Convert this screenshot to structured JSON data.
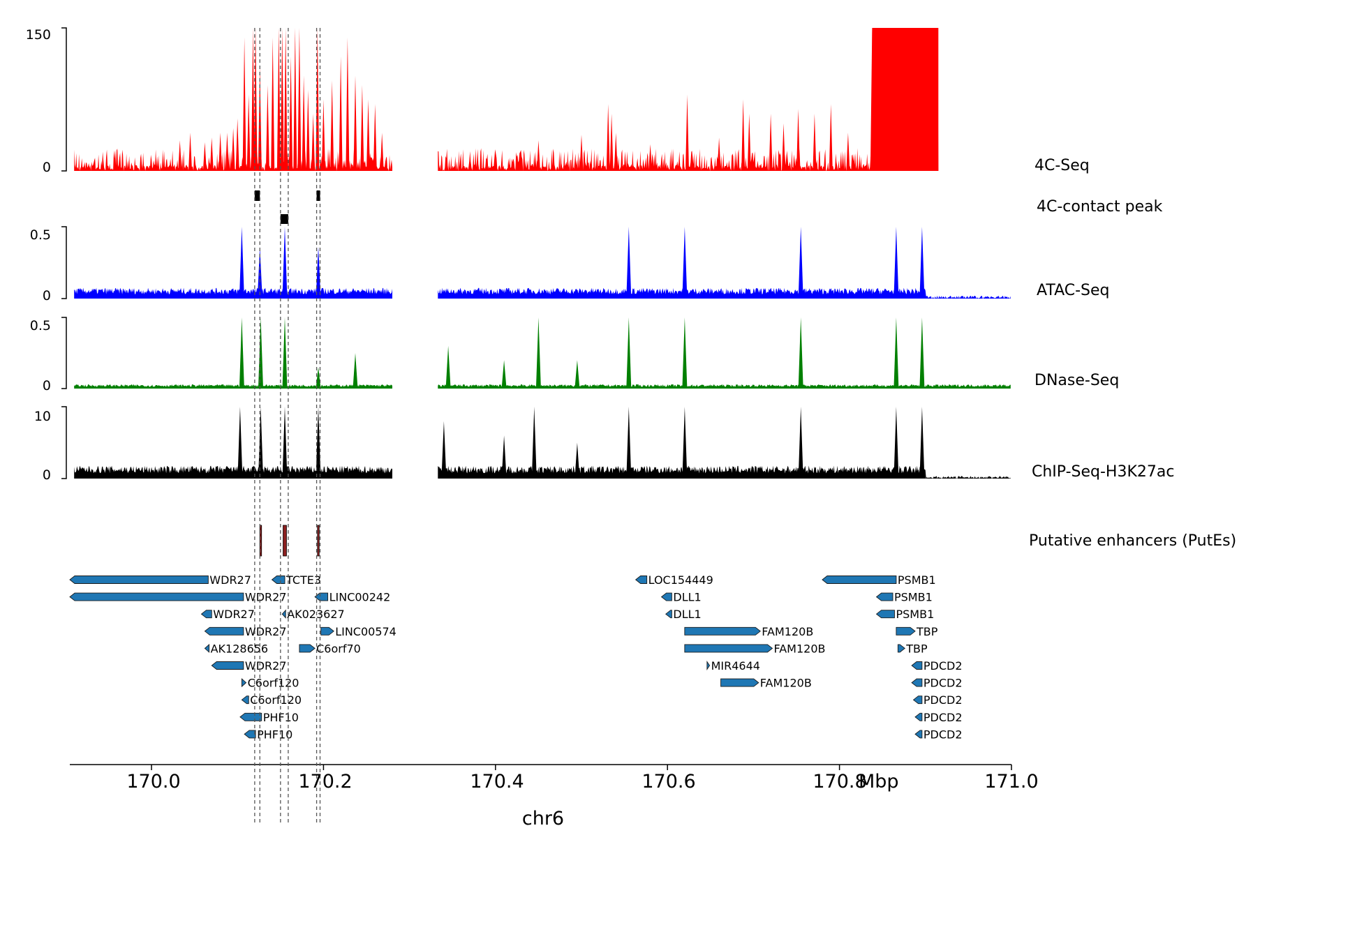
{
  "chart_data": {
    "type": "area",
    "chromosome": "chr6",
    "unit": "Mbp",
    "xlim": [
      169.905,
      171.0
    ],
    "xticks": [
      "170.0",
      "170.2",
      "170.4",
      "170.6",
      "170.8",
      "171.0"
    ],
    "gaps": [
      [
        170.28,
        170.333
      ]
    ],
    "tracks": [
      {
        "name": "4C-Seq",
        "color": "#ff0000",
        "ylim": [
          0,
          150
        ],
        "yticks": [
          "0",
          "150"
        ],
        "clip": true,
        "peaks": [
          [
            170.1,
            55
          ],
          [
            170.108,
            140
          ],
          [
            170.113,
            80
          ],
          [
            170.118,
            150
          ],
          [
            170.121,
            150
          ],
          [
            170.126,
            110
          ],
          [
            170.135,
            90
          ],
          [
            170.141,
            140
          ],
          [
            170.148,
            150
          ],
          [
            170.152,
            150
          ],
          [
            170.156,
            150
          ],
          [
            170.162,
            120
          ],
          [
            170.167,
            150
          ],
          [
            170.172,
            150
          ],
          [
            170.177,
            100
          ],
          [
            170.182,
            85
          ],
          [
            170.188,
            60
          ],
          [
            170.193,
            150
          ],
          [
            170.2,
            75
          ],
          [
            170.21,
            95
          ],
          [
            170.22,
            120
          ],
          [
            170.228,
            140
          ],
          [
            170.237,
            100
          ],
          [
            170.245,
            90
          ],
          [
            170.252,
            75
          ],
          [
            170.26,
            70
          ],
          [
            170.268,
            40
          ],
          [
            170.033,
            32
          ],
          [
            170.045,
            40
          ],
          [
            170.062,
            30
          ],
          [
            170.07,
            35
          ],
          [
            170.08,
            40
          ],
          [
            170.088,
            40
          ],
          [
            170.095,
            45
          ],
          [
            170.45,
            32
          ],
          [
            170.5,
            38
          ],
          [
            170.531,
            70
          ],
          [
            170.535,
            60
          ],
          [
            170.54,
            40
          ],
          [
            170.58,
            28
          ],
          [
            170.623,
            80
          ],
          [
            170.66,
            35
          ],
          [
            170.688,
            75
          ],
          [
            170.695,
            60
          ],
          [
            170.72,
            60
          ],
          [
            170.735,
            50
          ],
          [
            170.752,
            65
          ],
          [
            170.771,
            60
          ],
          [
            170.79,
            70
          ],
          [
            170.81,
            40
          ],
          [
            170.838,
            150
          ],
          [
            170.85,
            150
          ],
          [
            170.865,
            150
          ],
          [
            170.88,
            150
          ],
          [
            170.9,
            150
          ],
          [
            170.91,
            150
          ]
        ]
      },
      {
        "name": "4C-contact peak",
        "color": "#000000",
        "intervals": [
          [
            170.12,
            170.126,
            "normal"
          ],
          [
            170.15,
            170.159,
            "tall"
          ],
          [
            170.192,
            170.196,
            "normal"
          ]
        ]
      },
      {
        "name": "ATAC-Seq",
        "color": "#0000ff",
        "ylim": [
          0,
          0.5
        ],
        "yticks": [
          "0",
          "0.5"
        ],
        "baseline": 0.05,
        "peaks": [
          [
            170.105,
            0.5
          ],
          [
            170.126,
            0.36
          ],
          [
            170.155,
            0.5
          ],
          [
            170.194,
            0.36
          ],
          [
            170.555,
            0.5
          ],
          [
            170.62,
            0.5
          ],
          [
            170.755,
            0.5
          ],
          [
            170.866,
            0.5
          ],
          [
            170.896,
            0.5
          ]
        ]
      },
      {
        "name": "DNase-Seq",
        "color": "#008000",
        "ylim": [
          0,
          0.5
        ],
        "yticks": [
          "0",
          "0.5"
        ],
        "baseline": 0.02,
        "peaks": [
          [
            170.105,
            0.5
          ],
          [
            170.127,
            0.5
          ],
          [
            170.155,
            0.5
          ],
          [
            170.194,
            0.15
          ],
          [
            170.237,
            0.25
          ],
          [
            170.345,
            0.3
          ],
          [
            170.41,
            0.2
          ],
          [
            170.45,
            0.5
          ],
          [
            170.495,
            0.2
          ],
          [
            170.555,
            0.5
          ],
          [
            170.62,
            0.5
          ],
          [
            170.755,
            0.5
          ],
          [
            170.866,
            0.5
          ],
          [
            170.896,
            0.5
          ]
        ]
      },
      {
        "name": "ChIP-Seq-H3K27ac",
        "color": "#000000",
        "ylim": [
          0,
          10
        ],
        "yticks": [
          "0",
          "10"
        ],
        "baseline": 1.2,
        "peaks": [
          [
            170.103,
            10
          ],
          [
            170.127,
            10
          ],
          [
            170.155,
            10
          ],
          [
            170.194,
            10
          ],
          [
            170.34,
            8
          ],
          [
            170.41,
            6
          ],
          [
            170.445,
            10
          ],
          [
            170.495,
            5
          ],
          [
            170.555,
            10
          ],
          [
            170.62,
            10
          ],
          [
            170.755,
            10
          ],
          [
            170.866,
            10
          ],
          [
            170.896,
            10
          ]
        ]
      },
      {
        "name": "Putative enhancers (PutEs)",
        "color": "#8b2020",
        "intervals": [
          [
            170.126,
            170.128
          ],
          [
            170.153,
            170.157
          ],
          [
            170.193,
            170.195
          ]
        ]
      }
    ],
    "genes": [
      {
        "name": "WDR27",
        "start": 169.9,
        "end": 170.066,
        "strand": "-",
        "row": 0
      },
      {
        "name": "WDR27",
        "start": 169.9,
        "end": 170.107,
        "strand": "-",
        "row": 1
      },
      {
        "name": "WDR27",
        "start": 170.058,
        "end": 170.07,
        "strand": "-",
        "row": 2
      },
      {
        "name": "WDR27",
        "start": 170.062,
        "end": 170.107,
        "strand": "-",
        "row": 3
      },
      {
        "name": "AK128656",
        "start": 170.062,
        "end": 170.067,
        "strand": "-",
        "row": 4
      },
      {
        "name": "WDR27",
        "start": 170.07,
        "end": 170.107,
        "strand": "-",
        "row": 5
      },
      {
        "name": "C6orf120",
        "start": 170.105,
        "end": 170.11,
        "strand": "+",
        "row": 6
      },
      {
        "name": "C6orf120",
        "start": 170.105,
        "end": 170.113,
        "strand": "-",
        "row": 7
      },
      {
        "name": "PHF10",
        "start": 170.103,
        "end": 170.128,
        "strand": "-",
        "row": 8
      },
      {
        "name": "PHF10",
        "start": 170.108,
        "end": 170.121,
        "strand": "-",
        "row": 9
      },
      {
        "name": "TCTE3",
        "start": 170.14,
        "end": 170.155,
        "strand": "-",
        "row": 0
      },
      {
        "name": "AK023627",
        "start": 170.152,
        "end": 170.156,
        "strand": "-",
        "row": 2
      },
      {
        "name": "C6orf70",
        "start": 170.172,
        "end": 170.19,
        "strand": "+",
        "row": 4
      },
      {
        "name": "LINC00242",
        "start": 170.19,
        "end": 170.205,
        "strand": "-",
        "row": 1
      },
      {
        "name": "LINC00574",
        "start": 170.197,
        "end": 170.212,
        "strand": "+",
        "row": 3
      },
      {
        "name": "LOC154449",
        "start": 170.563,
        "end": 170.576,
        "strand": "-",
        "row": 0
      },
      {
        "name": "DLL1",
        "start": 170.593,
        "end": 170.605,
        "strand": "-",
        "row": 1
      },
      {
        "name": "DLL1",
        "start": 170.598,
        "end": 170.605,
        "strand": "-",
        "row": 2
      },
      {
        "name": "FAM120B",
        "start": 170.62,
        "end": 170.708,
        "strand": "+",
        "row": 3
      },
      {
        "name": "FAM120B",
        "start": 170.62,
        "end": 170.722,
        "strand": "+",
        "row": 4
      },
      {
        "name": "MIR4644",
        "start": 170.646,
        "end": 170.649,
        "strand": "+",
        "row": 5
      },
      {
        "name": "FAM120B",
        "start": 170.662,
        "end": 170.706,
        "strand": "+",
        "row": 6
      },
      {
        "name": "PSMB1",
        "start": 170.78,
        "end": 170.866,
        "strand": "-",
        "row": 0
      },
      {
        "name": "PSMB1",
        "start": 170.843,
        "end": 170.862,
        "strand": "-",
        "row": 1
      },
      {
        "name": "PSMB1",
        "start": 170.843,
        "end": 170.864,
        "strand": "-",
        "row": 2
      },
      {
        "name": "TBP",
        "start": 170.866,
        "end": 170.888,
        "strand": "+",
        "row": 3
      },
      {
        "name": "TBP",
        "start": 170.868,
        "end": 170.876,
        "strand": "+",
        "row": 4
      },
      {
        "name": "PDCD2",
        "start": 170.884,
        "end": 170.896,
        "strand": "-",
        "row": 5
      },
      {
        "name": "PDCD2",
        "start": 170.884,
        "end": 170.896,
        "strand": "-",
        "row": 6
      },
      {
        "name": "PDCD2",
        "start": 170.886,
        "end": 170.896,
        "strand": "-",
        "row": 7
      },
      {
        "name": "PDCD2",
        "start": 170.888,
        "end": 170.896,
        "strand": "-",
        "row": 8
      },
      {
        "name": "PDCD2",
        "start": 170.888,
        "end": 170.896,
        "strand": "-",
        "row": 9
      }
    ],
    "dashed_lines": [
      170.12,
      170.126,
      170.15,
      170.159,
      170.192,
      170.196
    ]
  }
}
